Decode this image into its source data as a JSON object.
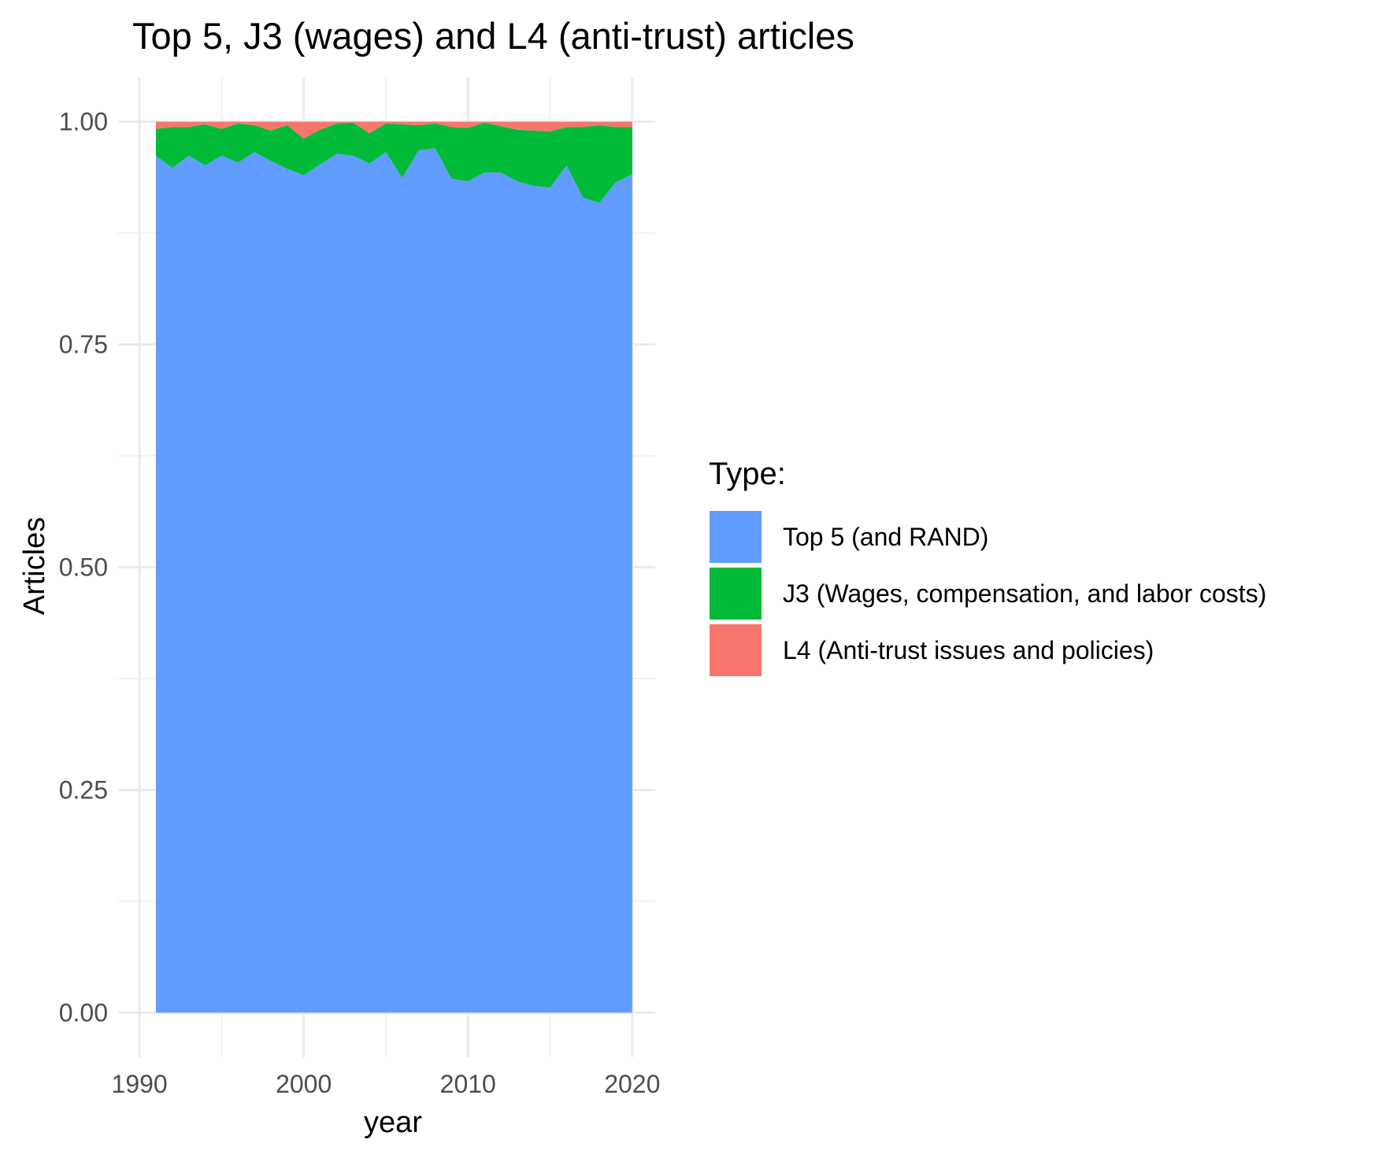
{
  "chart_data": {
    "type": "area",
    "stacked": true,
    "title": "Top 5, J3 (wages) and L4 (anti-trust) articles",
    "xlabel": "year",
    "ylabel": "Articles",
    "xlim": [
      1988.7,
      2021.4
    ],
    "ylim": [
      -0.05,
      1.05
    ],
    "x_ticks": [
      1990,
      2000,
      2010,
      2020
    ],
    "x_tick_labels": [
      "1990",
      "2000",
      "2010",
      "2020"
    ],
    "y_ticks": [
      0,
      0.25,
      0.5,
      0.75,
      1.0
    ],
    "y_tick_labels": [
      "0.00",
      "0.25",
      "0.50",
      "0.75",
      "1.00"
    ],
    "grid": true,
    "legend": {
      "title": "Type:",
      "position": "right",
      "entries": [
        "Top 5 (and RAND)",
        "J3 (Wages, compensation, and labor costs)",
        "L4 (Anti-trust issues and policies)"
      ]
    },
    "x": [
      1991,
      1992,
      1993,
      1994,
      1995,
      1996,
      1997,
      1998,
      1999,
      2000,
      2001,
      2002,
      2003,
      2004,
      2005,
      2006,
      2007,
      2008,
      2009,
      2010,
      2011,
      2012,
      2013,
      2014,
      2015,
      2016,
      2017,
      2018,
      2019,
      2020
    ],
    "series": [
      {
        "name": "Top 5 (and RAND)",
        "color": "#619cff",
        "values": [
          0.962,
          0.948,
          0.962,
          0.951,
          0.962,
          0.954,
          0.966,
          0.956,
          0.947,
          0.94,
          0.952,
          0.964,
          0.962,
          0.953,
          0.966,
          0.937,
          0.968,
          0.97,
          0.936,
          0.933,
          0.943,
          0.943,
          0.933,
          0.928,
          0.926,
          0.951,
          0.915,
          0.909,
          0.932,
          0.941
        ]
      },
      {
        "name": "J3 (Wages, compensation, and labor costs)",
        "color": "#00ba38",
        "values": [
          0.03,
          0.046,
          0.032,
          0.046,
          0.03,
          0.044,
          0.03,
          0.034,
          0.049,
          0.041,
          0.039,
          0.034,
          0.037,
          0.034,
          0.032,
          0.06,
          0.028,
          0.028,
          0.058,
          0.06,
          0.056,
          0.052,
          0.058,
          0.062,
          0.063,
          0.043,
          0.079,
          0.087,
          0.062,
          0.053
        ]
      },
      {
        "name": "L4 (Anti-trust issues and policies)",
        "color": "#f8766d",
        "values": [
          0.008,
          0.006,
          0.006,
          0.003,
          0.008,
          0.002,
          0.004,
          0.01,
          0.004,
          0.019,
          0.009,
          0.002,
          0.001,
          0.013,
          0.002,
          0.003,
          0.004,
          0.002,
          0.006,
          0.007,
          0.001,
          0.005,
          0.009,
          0.01,
          0.011,
          0.006,
          0.006,
          0.004,
          0.006,
          0.006
        ]
      }
    ]
  }
}
